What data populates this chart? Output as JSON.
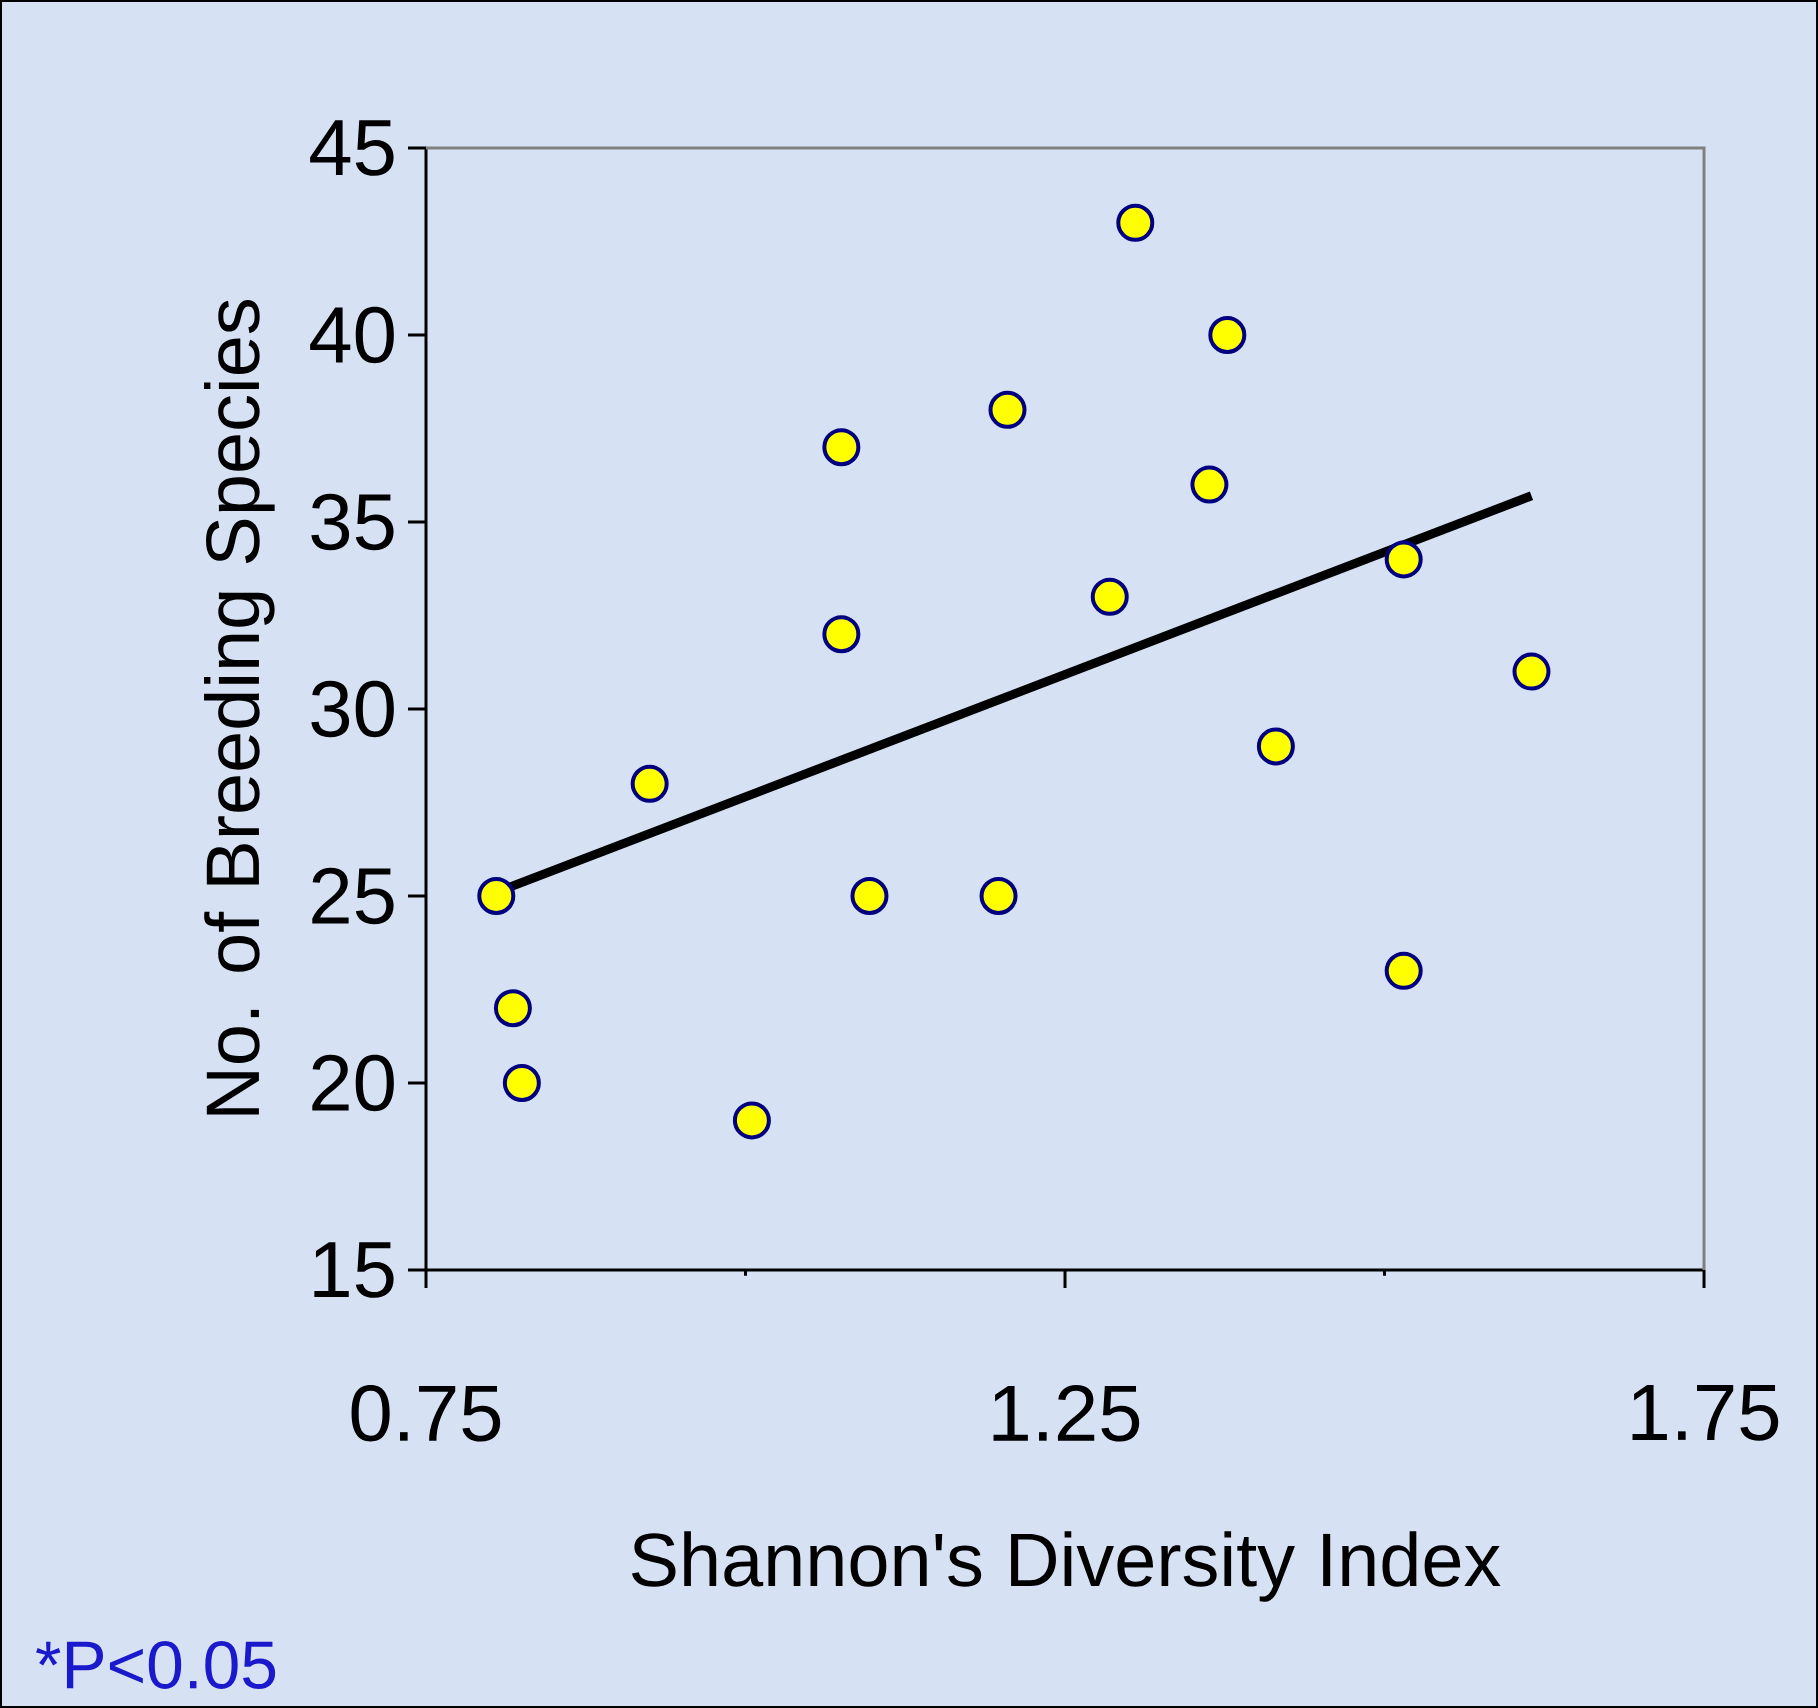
{
  "chart_data": {
    "type": "scatter",
    "xlabel": "Shannon's Diversity Index",
    "ylabel": "No. of Breeding Species",
    "annotations": [
      "*P<0.05"
    ],
    "xlim": [
      0.75,
      1.75
    ],
    "xticks": [
      0.75,
      1.25,
      1.75
    ],
    "ylim": [
      15,
      45
    ],
    "yticks": [
      15,
      20,
      25,
      30,
      35,
      40,
      45
    ],
    "grid": false,
    "series": [
      {
        "marker": "circle",
        "color": "#ffff00",
        "x": [
          0.805,
          0.818,
          0.825,
          0.925,
          1.005,
          1.075,
          1.075,
          1.097,
          1.198,
          1.205,
          1.285,
          1.305,
          1.363,
          1.377,
          1.415,
          1.515,
          1.515,
          1.615
        ],
        "values": [
          25,
          22,
          20,
          28,
          19,
          37,
          32,
          25,
          25,
          38,
          33,
          43,
          36,
          40,
          29,
          34,
          23,
          31
        ]
      },
      {
        "type": "line",
        "marker": "none",
        "color": "#000000",
        "x": [
          0.805,
          1.615
        ],
        "values": [
          25.1,
          35.7
        ]
      }
    ]
  }
}
